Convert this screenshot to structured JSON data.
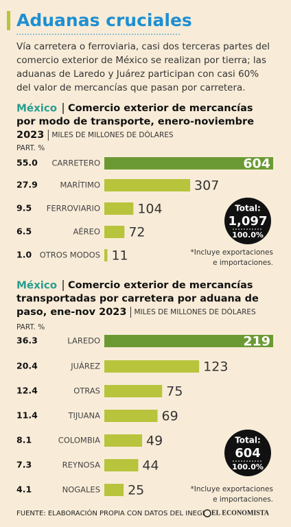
{
  "header": {
    "title": "Aduanas cruciales",
    "intro_lines": [
      "Vía carretera o ferroviaria, casi dos terceras partes del",
      "comercio exterior de México se realizan por tierra; las",
      "aduanas de Laredo y Juárez participan con casi 60%",
      "del valor de mercancías que pasan por carretera."
    ]
  },
  "chart_data": [
    {
      "type": "bar",
      "orientation": "horizontal",
      "region": "México",
      "title_lines": [
        "Comercio exterior de mercancías",
        "por modo de transporte, enero-noviembre",
        "2023"
      ],
      "unit": "MILES DE MILLONES DE DÓLARES",
      "share_header": "PART. %",
      "categories": [
        "CARRETERO",
        "MARÍTIMO",
        "FERROVIARIO",
        "AÉREO",
        "OTROS MODOS"
      ],
      "values": [
        604,
        307,
        104,
        72,
        11
      ],
      "shares": [
        "55.0",
        "27.9",
        "9.5",
        "6.5",
        "1.0"
      ],
      "xlim": [
        0,
        604
      ],
      "colors": [
        "#6b9a34",
        "#b8c43c",
        "#b8c43c",
        "#b8c43c",
        "#b8c43c"
      ],
      "total": {
        "label": "Total:",
        "value": 1097,
        "value_label": "1,097",
        "percent": "100.0%"
      },
      "footnote_lines": [
        "*Incluye exportaciones",
        "e importaciones."
      ]
    },
    {
      "type": "bar",
      "orientation": "horizontal",
      "region": "México",
      "title_lines": [
        "Comercio exterior de mercancías",
        "transportadas por carretera por aduana de",
        "paso, ene-nov 2023"
      ],
      "unit": "MILES DE MILLONES DE DÓLARES",
      "share_header": "PART. %",
      "categories": [
        "LAREDO",
        "JUÁREZ",
        "OTRAS",
        "TIJUANA",
        "COLOMBIA",
        "REYNOSA",
        "NOGALES"
      ],
      "values": [
        219,
        123,
        75,
        69,
        49,
        44,
        25
      ],
      "shares": [
        "36.3",
        "20.4",
        "12.4",
        "11.4",
        "8.1",
        "7.3",
        "4.1"
      ],
      "xlim": [
        0,
        219
      ],
      "colors": [
        "#6b9a34",
        "#b8c43c",
        "#b8c43c",
        "#b8c43c",
        "#b8c43c",
        "#b8c43c",
        "#b8c43c"
      ],
      "total": {
        "label": "Total:",
        "value": 604,
        "value_label": "604",
        "percent": "100.0%"
      },
      "footnote_lines": [
        "*Incluye exportaciones",
        "e importaciones."
      ]
    }
  ],
  "footer": {
    "source": "FUENTE: ELABORACIÓN PROPIA CON DATOS DEL INEGI",
    "logo": "EL ECONOMISTA"
  }
}
